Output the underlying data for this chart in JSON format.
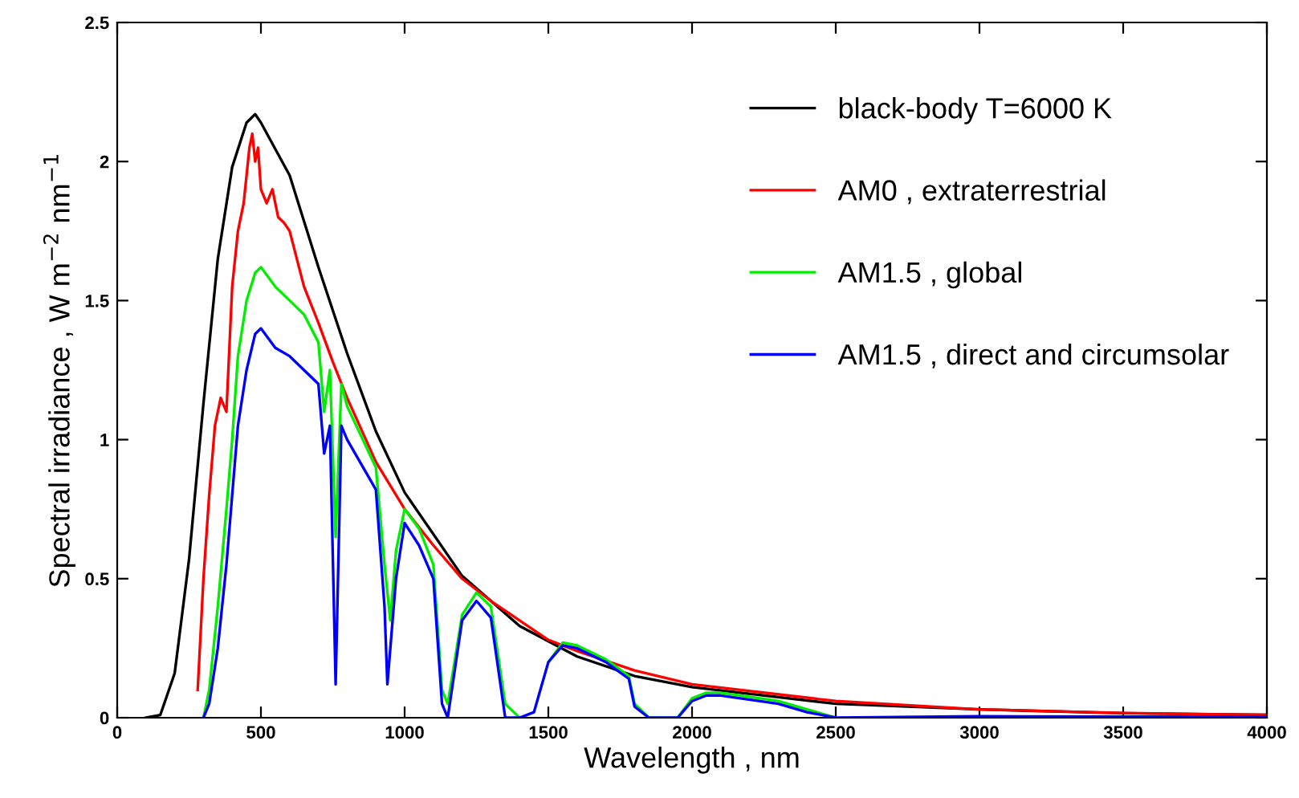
{
  "chart_data": {
    "type": "line",
    "xlabel": "Wavelength , nm",
    "ylabel": "Spectral irradiance , W m$^{−2}$ nm$^{−1}$",
    "xlim": [
      0,
      4000
    ],
    "ylim": [
      0,
      2.5
    ],
    "xticks": [
      0,
      500,
      1000,
      1500,
      2000,
      2500,
      3000,
      3500,
      4000
    ],
    "yticks": [
      0,
      0.5,
      1,
      1.5,
      2,
      2.5
    ],
    "grid": false,
    "legend": "top right",
    "marker": "none",
    "line_style": "solid",
    "series": [
      {
        "name": "black-body T=6000 K",
        "color": "#000000",
        "x": [
          100,
          150,
          200,
          250,
          300,
          350,
          400,
          450,
          480,
          500,
          600,
          700,
          800,
          900,
          1000,
          1200,
          1400,
          1600,
          1800,
          2000,
          2500,
          3000,
          3500,
          4000
        ],
        "values": [
          0,
          0.01,
          0.16,
          0.57,
          1.13,
          1.65,
          1.98,
          2.14,
          2.17,
          2.14,
          1.95,
          1.62,
          1.31,
          1.03,
          0.81,
          0.51,
          0.33,
          0.22,
          0.15,
          0.11,
          0.05,
          0.03,
          0.016,
          0.01
        ]
      },
      {
        "name": "AM0 , extraterrestrial",
        "color": "#ff0000",
        "x": [
          280,
          300,
          320,
          340,
          360,
          380,
          400,
          420,
          440,
          460,
          470,
          480,
          490,
          500,
          520,
          540,
          560,
          580,
          600,
          650,
          700,
          750,
          800,
          900,
          1000,
          1100,
          1200,
          1300,
          1400,
          1500,
          1600,
          1800,
          2000,
          2500,
          3000,
          3500,
          4000
        ],
        "values": [
          0.1,
          0.5,
          0.8,
          1.05,
          1.15,
          1.1,
          1.55,
          1.75,
          1.85,
          2.05,
          2.1,
          2.0,
          2.05,
          1.9,
          1.85,
          1.9,
          1.8,
          1.78,
          1.75,
          1.55,
          1.42,
          1.28,
          1.15,
          0.92,
          0.75,
          0.62,
          0.5,
          0.42,
          0.35,
          0.28,
          0.24,
          0.17,
          0.12,
          0.06,
          0.03,
          0.017,
          0.01
        ]
      },
      {
        "name": "AM1.5 , global",
        "color": "#00ee00",
        "x": [
          300,
          320,
          350,
          380,
          400,
          420,
          450,
          480,
          500,
          550,
          600,
          650,
          700,
          720,
          740,
          760,
          780,
          800,
          900,
          930,
          950,
          970,
          1000,
          1050,
          1100,
          1130,
          1150,
          1200,
          1250,
          1300,
          1350,
          1400,
          1450,
          1500,
          1550,
          1600,
          1700,
          1780,
          1800,
          1850,
          1950,
          2000,
          2050,
          2100,
          2300,
          2400,
          2500
        ],
        "values": [
          0,
          0.1,
          0.4,
          0.75,
          1.0,
          1.3,
          1.5,
          1.6,
          1.62,
          1.55,
          1.5,
          1.45,
          1.35,
          1.1,
          1.25,
          0.65,
          1.2,
          1.12,
          0.9,
          0.55,
          0.35,
          0.6,
          0.75,
          0.68,
          0.55,
          0.1,
          0.05,
          0.37,
          0.45,
          0.4,
          0.05,
          0,
          null,
          0.2,
          0.27,
          0.26,
          0.21,
          0.15,
          0.05,
          0,
          0,
          0.07,
          0.09,
          0.09,
          0.06,
          0.03,
          0
        ]
      },
      {
        "name": "AM1.5 , direct and circumsolar",
        "color": "#0000ff",
        "x": [
          300,
          320,
          350,
          380,
          400,
          420,
          450,
          480,
          500,
          550,
          600,
          650,
          700,
          720,
          740,
          760,
          780,
          800,
          900,
          930,
          940,
          970,
          1000,
          1050,
          1100,
          1130,
          1150,
          1200,
          1250,
          1300,
          1350,
          1400,
          1450,
          1500,
          1550,
          1600,
          1700,
          1780,
          1800,
          1850,
          1950,
          2000,
          2050,
          2100,
          2300,
          2400,
          2500,
          3000,
          4000
        ],
        "values": [
          0,
          0.05,
          0.25,
          0.55,
          0.8,
          1.05,
          1.25,
          1.38,
          1.4,
          1.33,
          1.3,
          1.25,
          1.2,
          0.95,
          1.05,
          0.12,
          1.05,
          1.0,
          0.82,
          0.4,
          0.12,
          0.5,
          0.7,
          0.62,
          0.5,
          0.05,
          0,
          0.35,
          0.42,
          0.36,
          0,
          0,
          0.02,
          0.2,
          0.26,
          0.25,
          0.2,
          0.14,
          0.04,
          0,
          0,
          0.06,
          0.08,
          0.08,
          0.05,
          0.02,
          0,
          0.005,
          0.003
        ]
      }
    ]
  }
}
